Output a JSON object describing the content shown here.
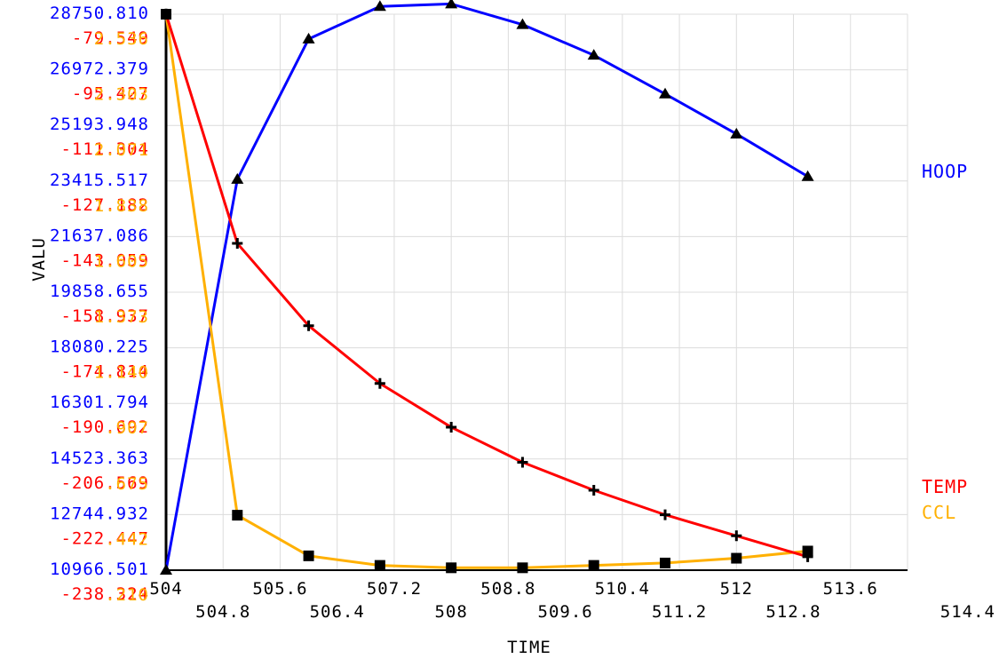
{
  "chart_data": {
    "type": "line",
    "xlabel": "TIME",
    "ylabel": "VALU",
    "xlim": [
      504,
      514.4
    ],
    "x_ticks_top": [
      "504",
      "505.6",
      "507.2",
      "508.8",
      "510.4",
      "512",
      "513.6"
    ],
    "x_ticks_bottom": [
      "504.8",
      "506.4",
      "508",
      "509.6",
      "511.2",
      "512.8",
      "514.4"
    ],
    "x_tick_values_top": [
      504,
      505.6,
      507.2,
      508.8,
      510.4,
      512,
      513.6
    ],
    "x_tick_values_bottom": [
      504.8,
      506.4,
      508,
      509.6,
      511.2,
      512.8,
      514.4
    ],
    "x": [
      504,
      505,
      506,
      507,
      508,
      509,
      510,
      511,
      512,
      513
    ],
    "series": [
      {
        "name": "HOOP",
        "color": "#0000ff",
        "marker": "triangle",
        "ylim": [
          10966.501,
          28750.81
        ],
        "y_ticks": [
          "10966.501",
          "12744.932",
          "14523.363",
          "16301.794",
          "18080.225",
          "19858.655",
          "21637.086",
          "23415.517",
          "25193.948",
          "26972.379",
          "28750.810"
        ],
        "values": [
          10966.5,
          23470,
          27960,
          29000,
          29080,
          28420,
          27440,
          26200,
          24920,
          23560
        ]
      },
      {
        "name": "TEMP",
        "color": "#ff0000",
        "marker": "cross",
        "ylim": [
          -238.324,
          -79.549
        ],
        "y_ticks": [
          "-238.324",
          "-222.447",
          "-206.569",
          "-190.692",
          "-174.814",
          "-158.937",
          "-143.059",
          "-127.182",
          "-111.304",
          "-95.427",
          "-79.549"
        ],
        "values": [
          -79.5,
          -145.0,
          -168.5,
          -185.0,
          -197.5,
          -207.5,
          -215.5,
          -222.5,
          -228.5,
          -234.5
        ]
      },
      {
        "name": "CCL",
        "color": "#ffb000",
        "marker": "square",
        "ylim": [
          0.21,
          2.536
        ],
        "y_ticks": [
          ".210",
          ".442",
          ".675",
          ".907",
          "1.140",
          "1.373",
          "1.605",
          "1.838",
          "2.071",
          "2.303",
          "2.536"
        ],
        "values": [
          2.536,
          0.44,
          0.27,
          0.23,
          0.22,
          0.22,
          0.23,
          0.24,
          0.26,
          0.29
        ]
      }
    ]
  }
}
